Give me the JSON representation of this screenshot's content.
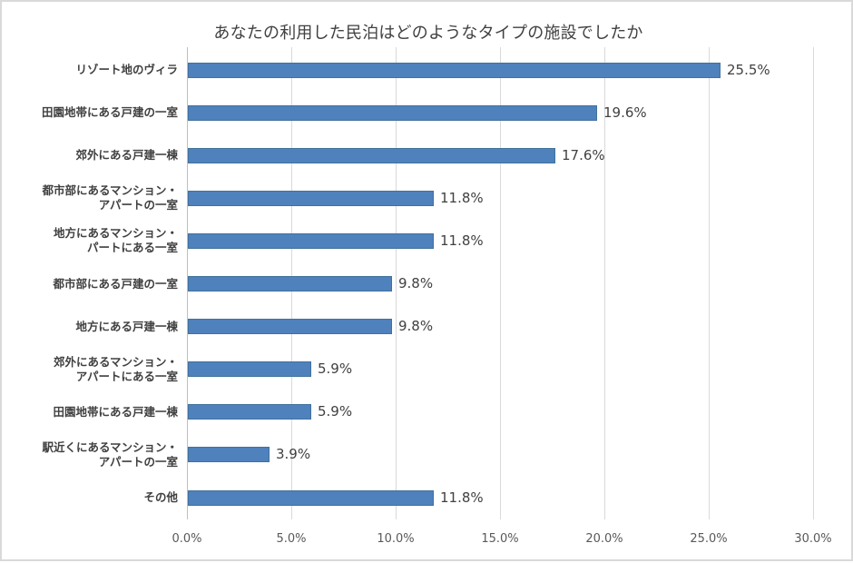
{
  "chart_title": "あなたの利用した民泊はどのようなタイプの施設でしたか",
  "colors": {
    "bar": "#4F81BD",
    "grid": "#d9d9d9",
    "text": "#404040"
  },
  "axis": {
    "ticks": [
      "0.0%",
      "5.0%",
      "10.0%",
      "15.0%",
      "20.0%",
      "25.0%",
      "30.0%"
    ]
  },
  "rows": [
    {
      "label_lines": [
        "リゾート地のヴィラ"
      ],
      "value": 25.5,
      "value_label": "25.5%"
    },
    {
      "label_lines": [
        "田園地帯にある戸建の一室"
      ],
      "value": 19.6,
      "value_label": "19.6%"
    },
    {
      "label_lines": [
        "郊外にある戸建一棟"
      ],
      "value": 17.6,
      "value_label": "17.6%"
    },
    {
      "label_lines": [
        "都市部にあるマンション・",
        "アパートの一室"
      ],
      "value": 11.8,
      "value_label": "11.8%"
    },
    {
      "label_lines": [
        "地方にあるマンション・",
        "パートにある一室"
      ],
      "value": 11.8,
      "value_label": "11.8%"
    },
    {
      "label_lines": [
        "都市部にある戸建の一室"
      ],
      "value": 9.8,
      "value_label": "9.8%"
    },
    {
      "label_lines": [
        "地方にある戸建一棟"
      ],
      "value": 9.8,
      "value_label": "9.8%"
    },
    {
      "label_lines": [
        "郊外にあるマンション・",
        "アパートにある一室"
      ],
      "value": 5.9,
      "value_label": "5.9%"
    },
    {
      "label_lines": [
        "田園地帯にある戸建一棟"
      ],
      "value": 5.9,
      "value_label": "5.9%"
    },
    {
      "label_lines": [
        "駅近くにあるマンション・",
        "アパートの一室"
      ],
      "value": 3.9,
      "value_label": "3.9%"
    },
    {
      "label_lines": [
        "その他"
      ],
      "value": 11.8,
      "value_label": "11.8%"
    }
  ],
  "chart_data": {
    "type": "bar",
    "orientation": "horizontal",
    "title": "あなたの利用した民泊はどのようなタイプの施設でしたか",
    "categories": [
      "リゾート地のヴィラ",
      "田園地帯にある戸建の一室",
      "郊外にある戸建一棟",
      "都市部にあるマンション・アパートの一室",
      "地方にあるマンション・パートにある一室",
      "都市部にある戸建の一室",
      "地方にある戸建一棟",
      "郊外にあるマンション・アパートにある一室",
      "田園地帯にある戸建一棟",
      "駅近くにあるマンション・アパートの一室",
      "その他"
    ],
    "values": [
      25.5,
      19.6,
      17.6,
      11.8,
      11.8,
      9.8,
      9.8,
      5.9,
      5.9,
      3.9,
      11.8
    ],
    "data_labels": [
      "25.5%",
      "19.6%",
      "17.6%",
      "11.8%",
      "11.8%",
      "9.8%",
      "9.8%",
      "5.9%",
      "5.9%",
      "3.9%",
      "11.8%"
    ],
    "xlabel": "",
    "ylabel": "",
    "xlim": [
      0,
      30
    ],
    "xticks": [
      "0.0%",
      "5.0%",
      "10.0%",
      "15.0%",
      "20.0%",
      "25.0%",
      "30.0%"
    ],
    "grid": "vertical",
    "legend": "none",
    "unit": "%"
  }
}
